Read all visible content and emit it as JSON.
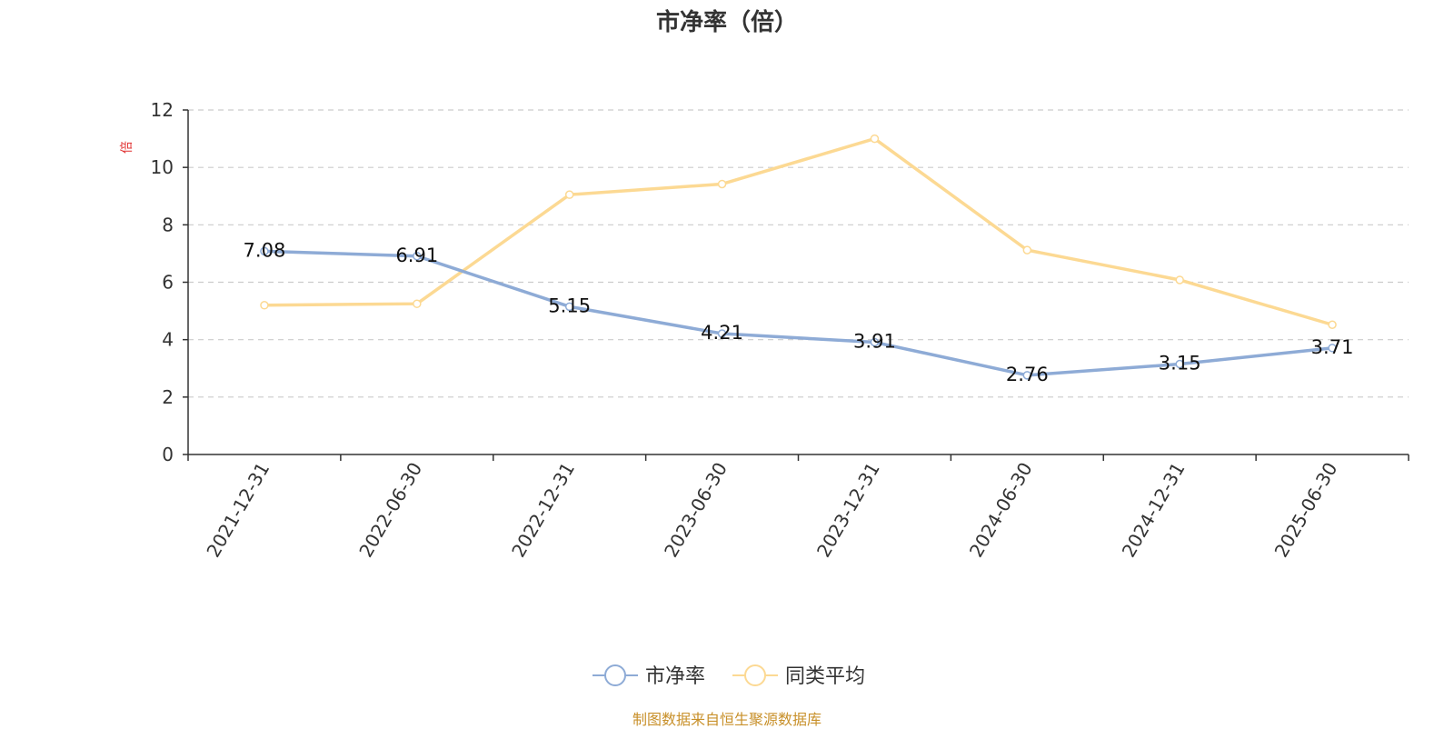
{
  "title": "市净率（倍）",
  "footer": {
    "text": "制图数据来自恒生聚源数据库",
    "color": "#c8902a"
  },
  "y_unit_label": "倍",
  "chart_data": {
    "type": "line",
    "x": [
      "2021-12-31",
      "2022-06-30",
      "2022-12-31",
      "2023-06-30",
      "2023-12-31",
      "2024-06-30",
      "2024-12-31",
      "2025-06-30"
    ],
    "ylim": [
      0,
      12
    ],
    "yticks": [
      0,
      2,
      4,
      6,
      8,
      10,
      12
    ],
    "grid": true,
    "legend_position": "bottom-center",
    "series": [
      {
        "name": "市净率",
        "color": "#8eabd6",
        "values": [
          7.08,
          6.91,
          5.15,
          4.21,
          3.91,
          2.76,
          3.15,
          3.71
        ],
        "labels": [
          "7.08",
          "6.91",
          "5.15",
          "4.21",
          "3.91",
          "2.76",
          "3.15",
          "3.71"
        ]
      },
      {
        "name": "同类平均",
        "color": "#fcd993",
        "values": [
          5.2,
          5.25,
          9.05,
          9.42,
          11.0,
          7.12,
          6.08,
          4.52
        ]
      }
    ]
  }
}
